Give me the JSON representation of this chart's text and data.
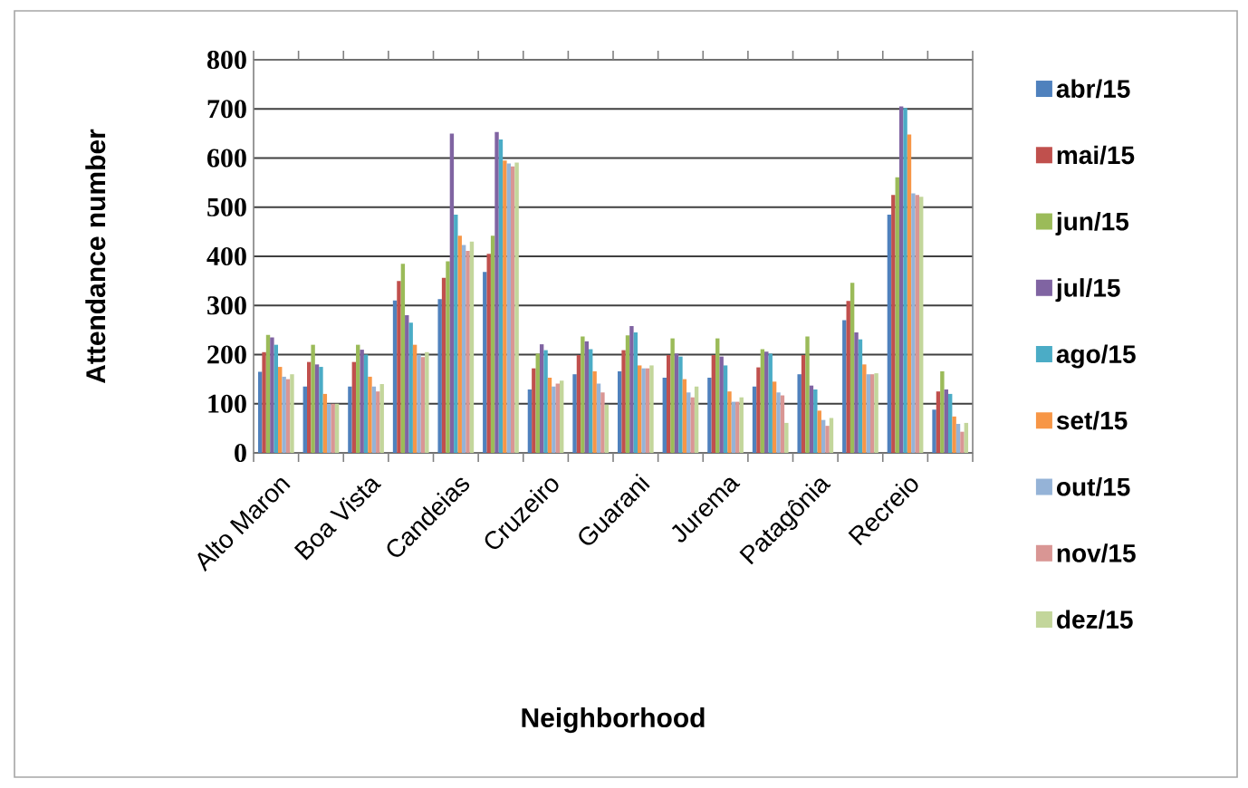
{
  "chart_data": {
    "type": "bar",
    "xlabel": "Neighborhood",
    "ylabel": "Attendance number",
    "categories": [
      "Alto Maron",
      null,
      "Boa Vista",
      null,
      "Candeias",
      null,
      "Cruzeiro",
      null,
      "Guarani",
      null,
      "Jurema",
      null,
      "Patagônia",
      null,
      "Recreio",
      null
    ],
    "series": [
      {
        "name": "abr/15",
        "color": "#4f81bd",
        "values": [
          165,
          135,
          135,
          310,
          313,
          368,
          129,
          160,
          166,
          153,
          153,
          135,
          160,
          270,
          485,
          88
        ]
      },
      {
        "name": "mai/15",
        "color": "#c0504d",
        "values": [
          205,
          185,
          185,
          350,
          356,
          405,
          172,
          199,
          209,
          199,
          199,
          174,
          199,
          309,
          525,
          125
        ]
      },
      {
        "name": "jun/15",
        "color": "#9bbb59",
        "values": [
          240,
          220,
          220,
          385,
          390,
          442,
          202,
          237,
          239,
          233,
          233,
          211,
          237,
          346,
          561,
          166
        ]
      },
      {
        "name": "jul/15",
        "color": "#8064a2",
        "values": [
          235,
          180,
          210,
          280,
          650,
          653,
          221,
          227,
          258,
          202,
          196,
          206,
          137,
          245,
          705,
          129
        ]
      },
      {
        "name": "ago/15",
        "color": "#4bacc6",
        "values": [
          220,
          175,
          200,
          265,
          485,
          638,
          209,
          211,
          245,
          196,
          178,
          202,
          129,
          231,
          702,
          120
        ]
      },
      {
        "name": "set/15",
        "color": "#f79646",
        "values": [
          175,
          120,
          155,
          220,
          442,
          595,
          153,
          166,
          178,
          150,
          125,
          145,
          86,
          180,
          648,
          74
        ]
      },
      {
        "name": "out/15",
        "color": "#95b3d7",
        "values": [
          155,
          100,
          135,
          200,
          423,
          589,
          135,
          141,
          172,
          123,
          104,
          123,
          67,
          160,
          528,
          59
        ]
      },
      {
        "name": "nov/15",
        "color": "#d99694",
        "values": [
          150,
          100,
          125,
          195,
          411,
          583,
          141,
          123,
          172,
          113,
          104,
          117,
          55,
          160,
          525,
          43
        ]
      },
      {
        "name": "dez/15",
        "color": "#c3d69b",
        "values": [
          160,
          100,
          140,
          205,
          430,
          591,
          147,
          98,
          178,
          135,
          113,
          61,
          71,
          162,
          521,
          61
        ]
      }
    ],
    "ylim": [
      0,
      800
    ],
    "yticks": [
      0,
      100,
      200,
      300,
      400,
      500,
      600,
      700,
      800
    ],
    "grid": "y",
    "legend": "right"
  }
}
